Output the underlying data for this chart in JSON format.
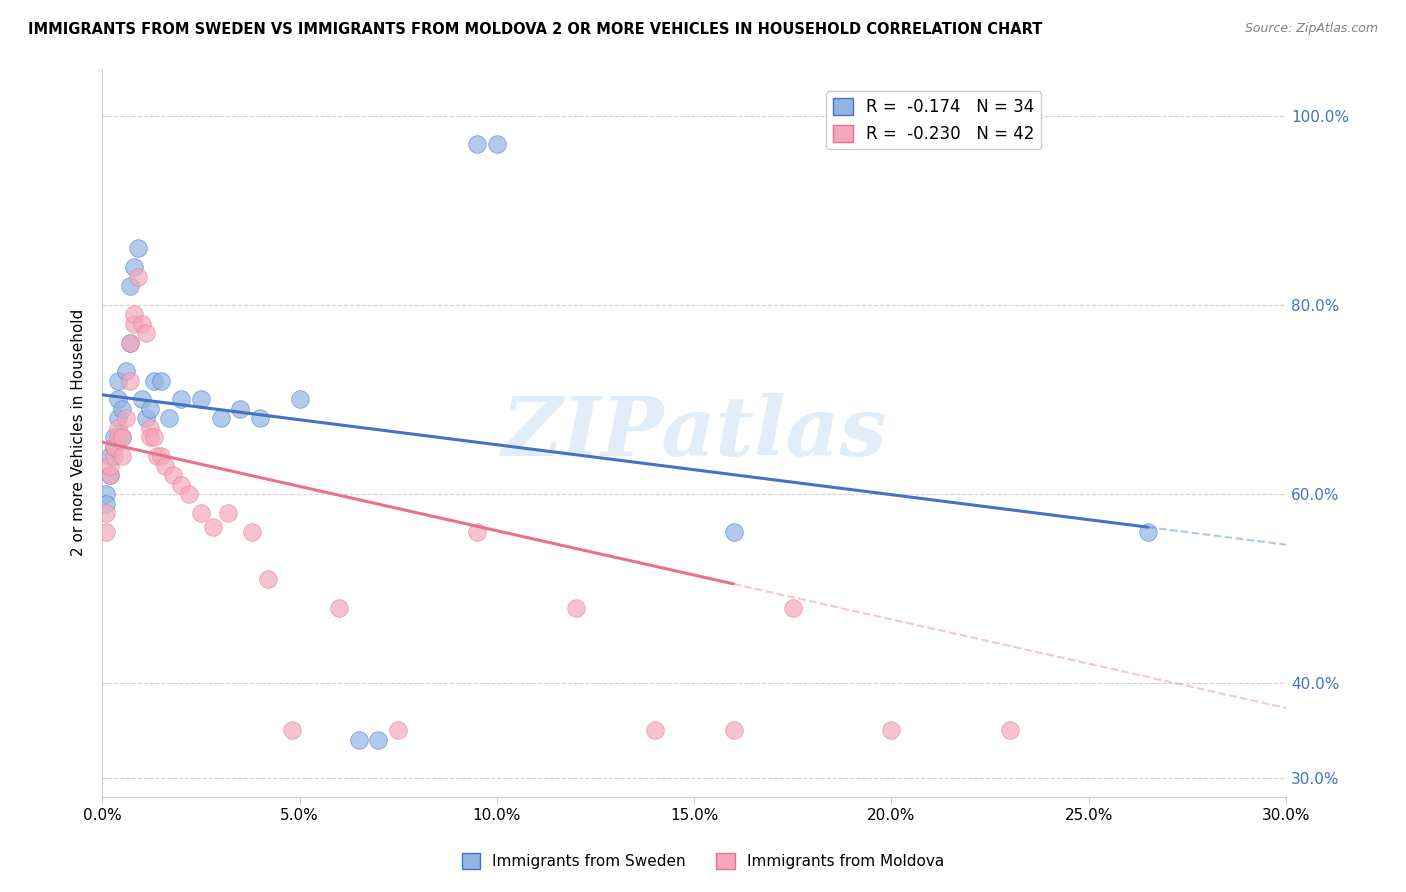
{
  "title": "IMMIGRANTS FROM SWEDEN VS IMMIGRANTS FROM MOLDOVA 2 OR MORE VEHICLES IN HOUSEHOLD CORRELATION CHART",
  "source": "Source: ZipAtlas.com",
  "ylabel": "2 or more Vehicles in Household",
  "xlim": [
    0.0,
    0.3
  ],
  "ylim": [
    0.28,
    1.05
  ],
  "xtick_labels": [
    "0.0%",
    "5.0%",
    "10.0%",
    "15.0%",
    "20.0%",
    "25.0%",
    "30.0%"
  ],
  "xtick_vals": [
    0.0,
    0.05,
    0.1,
    0.15,
    0.2,
    0.25,
    0.3
  ],
  "ytick_labels": [
    "100.0%",
    "80.0%",
    "60.0%",
    "40.0%",
    "30.0%"
  ],
  "ytick_vals": [
    1.0,
    0.8,
    0.6,
    0.4,
    0.3
  ],
  "sweden_color": "#92B4E3",
  "moldova_color": "#F5A8BB",
  "sweden_line_color": "#4472C4",
  "moldova_line_color": "#E8728A",
  "sweden_R": -0.174,
  "sweden_N": 34,
  "moldova_R": -0.23,
  "moldova_N": 42,
  "watermark": "ZIPatlas",
  "legend_sweden": "Immigrants from Sweden",
  "legend_moldova": "Immigrants from Moldova",
  "sweden_x": [
    0.001,
    0.001,
    0.002,
    0.002,
    0.003,
    0.003,
    0.004,
    0.004,
    0.004,
    0.005,
    0.005,
    0.006,
    0.007,
    0.007,
    0.008,
    0.009,
    0.01,
    0.011,
    0.012,
    0.013,
    0.015,
    0.017,
    0.02,
    0.025,
    0.03,
    0.035,
    0.04,
    0.05,
    0.065,
    0.07,
    0.095,
    0.1,
    0.16,
    0.265
  ],
  "sweden_y": [
    0.6,
    0.59,
    0.62,
    0.64,
    0.65,
    0.66,
    0.68,
    0.7,
    0.72,
    0.69,
    0.66,
    0.73,
    0.76,
    0.82,
    0.84,
    0.86,
    0.7,
    0.68,
    0.69,
    0.72,
    0.72,
    0.68,
    0.7,
    0.7,
    0.68,
    0.69,
    0.68,
    0.7,
    0.34,
    0.34,
    0.97,
    0.97,
    0.56,
    0.56
  ],
  "moldova_x": [
    0.001,
    0.001,
    0.002,
    0.002,
    0.003,
    0.003,
    0.004,
    0.004,
    0.005,
    0.005,
    0.006,
    0.007,
    0.007,
    0.008,
    0.008,
    0.009,
    0.01,
    0.011,
    0.012,
    0.012,
    0.013,
    0.014,
    0.015,
    0.016,
    0.018,
    0.02,
    0.022,
    0.025,
    0.028,
    0.032,
    0.038,
    0.042,
    0.048,
    0.06,
    0.075,
    0.095,
    0.12,
    0.14,
    0.16,
    0.175,
    0.2,
    0.23
  ],
  "moldova_y": [
    0.58,
    0.56,
    0.62,
    0.63,
    0.64,
    0.65,
    0.67,
    0.66,
    0.66,
    0.64,
    0.68,
    0.72,
    0.76,
    0.78,
    0.79,
    0.83,
    0.78,
    0.77,
    0.67,
    0.66,
    0.66,
    0.64,
    0.64,
    0.63,
    0.62,
    0.61,
    0.6,
    0.58,
    0.565,
    0.58,
    0.56,
    0.51,
    0.35,
    0.48,
    0.35,
    0.56,
    0.48,
    0.35,
    0.35,
    0.48,
    0.35,
    0.35
  ],
  "sweden_trend_x0": 0.0,
  "sweden_trend_y0": 0.705,
  "sweden_trend_x1": 0.265,
  "sweden_trend_y1": 0.565,
  "moldova_trend_x0": 0.0,
  "moldova_trend_y0": 0.655,
  "moldova_trend_x1": 0.16,
  "moldova_trend_y1": 0.505
}
